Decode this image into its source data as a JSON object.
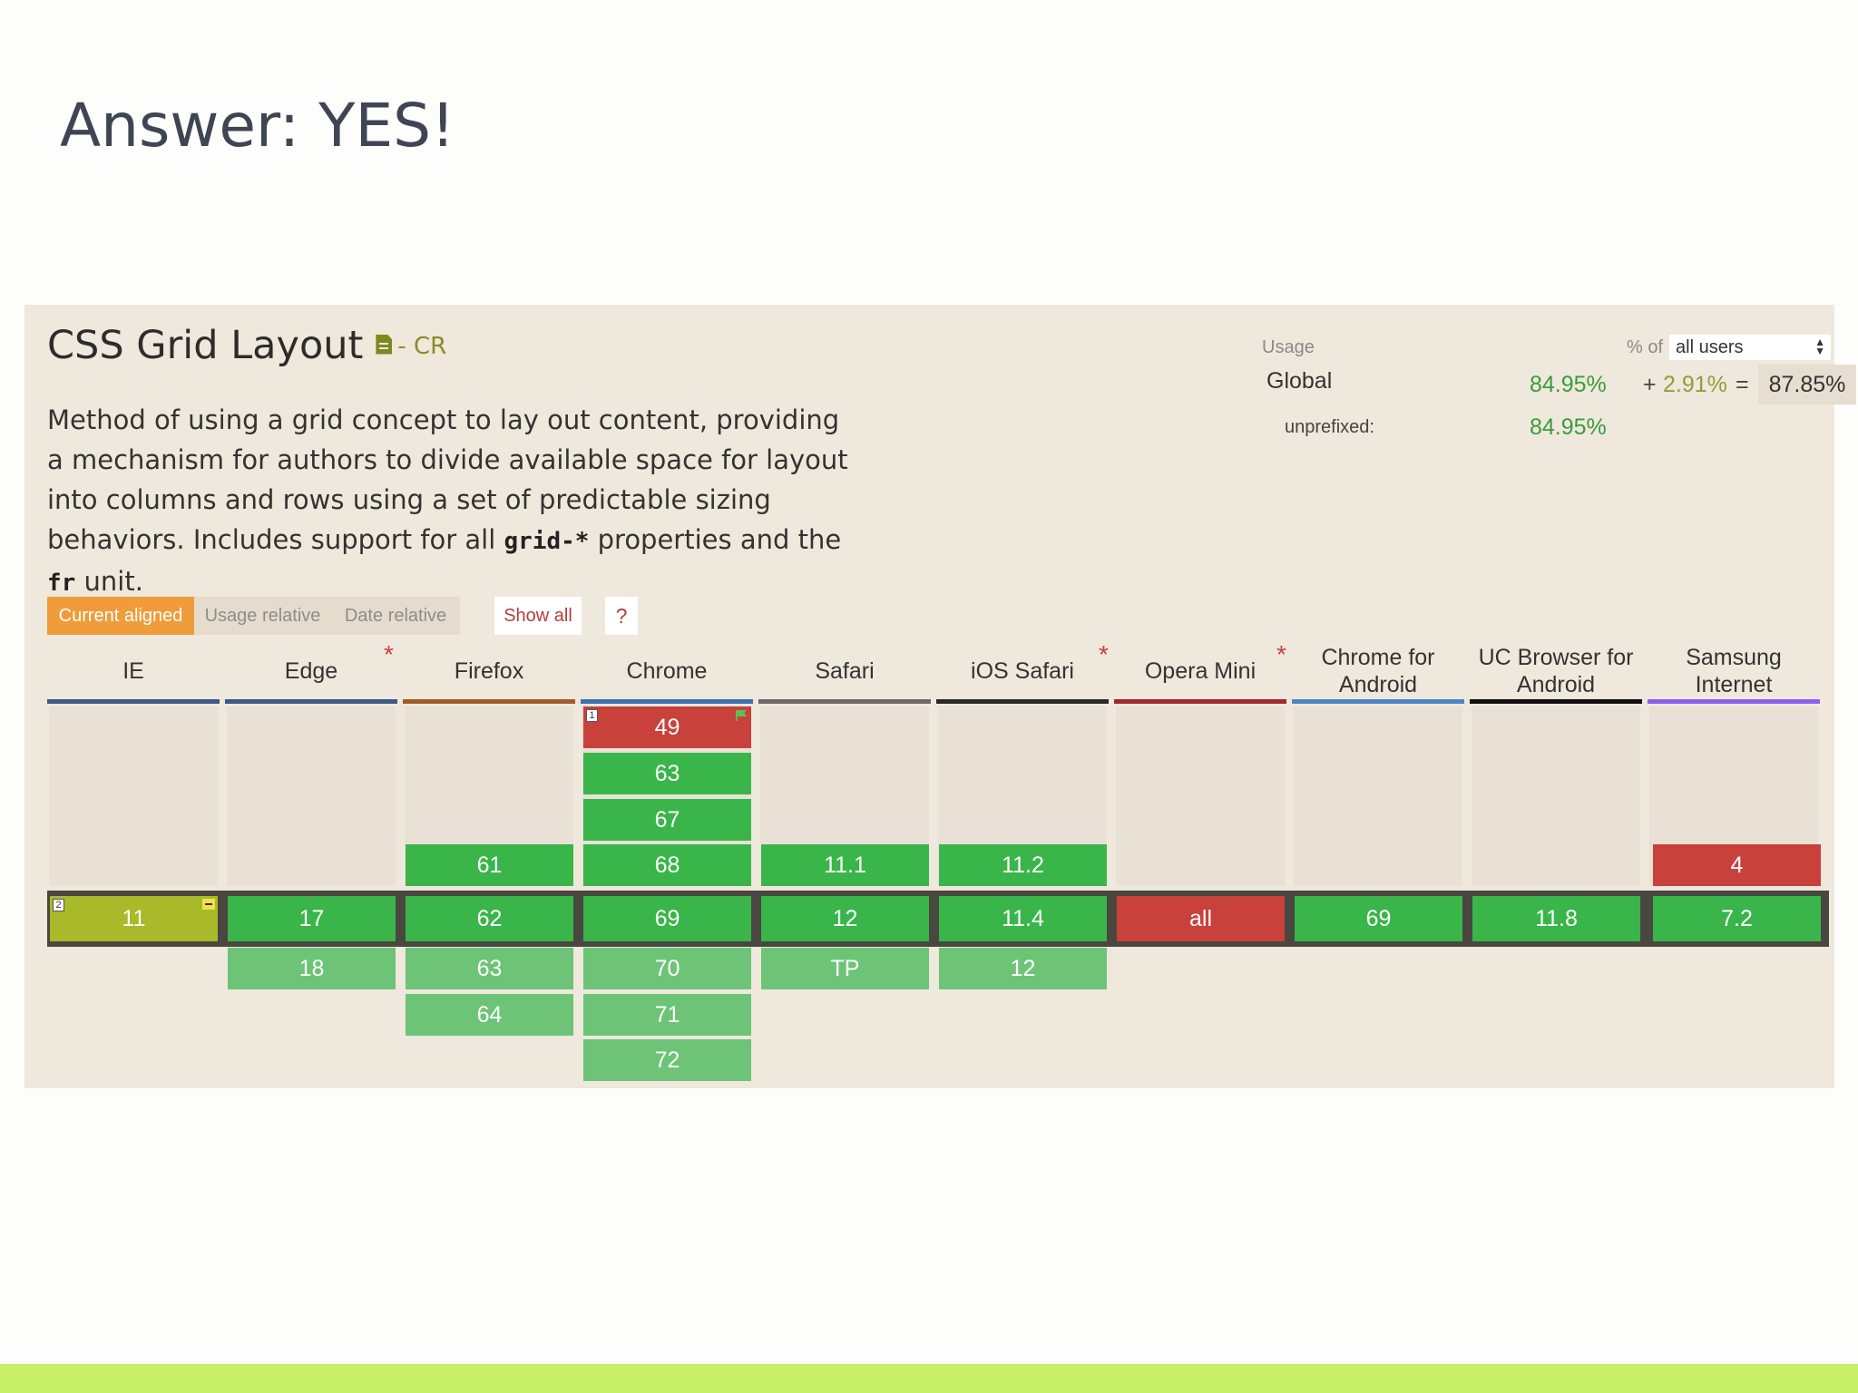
{
  "slide": {
    "title": "Answer: YES!"
  },
  "feature": {
    "title": "CSS Grid Layout",
    "status": "- CR",
    "desc_1": "Method of using a grid concept to lay out content, providing a mechanism for authors to divide available space for layout into columns and rows using a set of predictable sizing behaviors. Includes support for all ",
    "code_1": "grid-*",
    "desc_2": " properties and the ",
    "code_2": "fr",
    "desc_3": " unit."
  },
  "usage": {
    "label": "Usage",
    "pct_of": "% of",
    "users_select": "all users",
    "global_label": "Global",
    "supported": "84.95%",
    "plus": "+",
    "partial": "2.91%",
    "equals": "=",
    "total": "87.85%",
    "unprefixed_label": "unprefixed:",
    "unprefixed_value": "84.95%"
  },
  "controls": {
    "current_aligned": "Current aligned",
    "usage_relative": "Usage relative",
    "date_relative": "Date relative",
    "show_all": "Show all",
    "help": "?"
  },
  "browsers": [
    {
      "name": "IE",
      "color": "#3c5a86",
      "asterisk": false
    },
    {
      "name": "Edge",
      "color": "#3c5a86",
      "asterisk": true
    },
    {
      "name": "Firefox",
      "color": "#a65a2a",
      "asterisk": false
    },
    {
      "name": "Chrome",
      "color": "#3f6fb3",
      "asterisk": false
    },
    {
      "name": "Safari",
      "color": "#6e6a66",
      "asterisk": false
    },
    {
      "name": "iOS Safari",
      "color": "#2a2a2a",
      "asterisk": true
    },
    {
      "name": "Opera Mini",
      "color": "#a3282b",
      "asterisk": true
    },
    {
      "name": "Chrome for Android",
      "color": "#4a86c8",
      "asterisk": false
    },
    {
      "name": "UC Browser for Android",
      "color": "#111111",
      "asterisk": false
    },
    {
      "name": "Samsung Internet",
      "color": "#8d5ef0",
      "asterisk": false
    }
  ],
  "asterisk_symbol": "*",
  "versions": {
    "chrome_past": [
      "49",
      "63",
      "67",
      "68"
    ],
    "firefox_past": [
      "61"
    ],
    "safari_past": [
      "11.1"
    ],
    "ios_past": [
      "11.2"
    ],
    "samsung_past": [
      "4"
    ],
    "current": [
      "11",
      "17",
      "62",
      "69",
      "12",
      "11.4",
      "all",
      "69",
      "11.8",
      "7.2"
    ],
    "edge_future": [
      "18"
    ],
    "firefox_future": [
      "63",
      "64"
    ],
    "chrome_future": [
      "70",
      "71",
      "72"
    ],
    "safari_future": [
      "TP"
    ],
    "ios_future": [
      "12"
    ]
  },
  "notes": {
    "chrome_49": "1",
    "ie_11": "2"
  },
  "support_colors": {
    "yes": "#39b54a",
    "future": "#6dc476",
    "no": "#c8413b",
    "partial": "#a8b92a"
  }
}
